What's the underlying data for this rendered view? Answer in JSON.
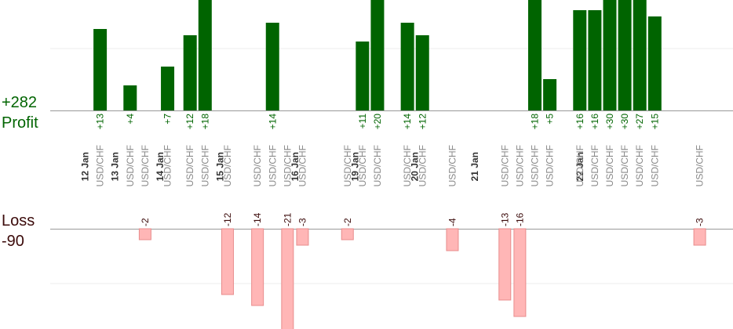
{
  "chart_data": {
    "type": "bar",
    "profit_label": "Profit",
    "profit_total": "+282",
    "loss_label": "Loss",
    "loss_total": "-90",
    "colors": {
      "profit_bar": "#006400",
      "profit_text": "#006400",
      "loss_bar": "#ffb6b6",
      "loss_bar_stroke": "#e88c8c",
      "loss_text": "#3b0a0a",
      "axis": "#999999",
      "grid": "#eeeeee",
      "symbol_text": "#888888",
      "date_text": "#333333"
    },
    "dates": [
      {
        "label": "12 Jan",
        "slot": 0
      },
      {
        "label": "13 Jan",
        "slot": 2
      },
      {
        "label": "14 Jan",
        "slot": 5
      },
      {
        "label": "15 Jan",
        "slot": 9
      },
      {
        "label": "16 Jan",
        "slot": 14
      },
      {
        "label": "19 Jan",
        "slot": 18
      },
      {
        "label": "20 Jan",
        "slot": 22
      },
      {
        "label": "21 Jan",
        "slot": 26
      },
      {
        "label": "22 Jan",
        "slot": 33
      }
    ],
    "trades": [
      {
        "symbol": "USD/CHF",
        "value": 13,
        "label": "+13",
        "slot": 1
      },
      {
        "symbol": "USD/CHF",
        "value": 4,
        "label": "+4",
        "slot": 3
      },
      {
        "symbol": "USD/CHF",
        "value": -2,
        "label": "-2",
        "slot": 4
      },
      {
        "symbol": "USD/CHF",
        "value": 7,
        "label": "+7",
        "slot": 5.5
      },
      {
        "symbol": "USD/CHF",
        "value": 12,
        "label": "+12",
        "slot": 7
      },
      {
        "symbol": "USD/CHF",
        "value": 18,
        "label": "+18",
        "slot": 8
      },
      {
        "symbol": "USD/CHF",
        "value": -12,
        "label": "-12",
        "slot": 9.5
      },
      {
        "symbol": "USD/CHF",
        "value": -14,
        "label": "-14",
        "slot": 11.5
      },
      {
        "symbol": "USD/CHF",
        "value": 14,
        "label": "+14",
        "slot": 12.5
      },
      {
        "symbol": "USD/CHF",
        "value": -21,
        "label": "-21",
        "slot": 13.5
      },
      {
        "symbol": "USD/CHF",
        "value": -3,
        "label": "-3",
        "slot": 14.5
      },
      {
        "symbol": "USD/CHF",
        "value": -2,
        "label": "-2",
        "slot": 17.5
      },
      {
        "symbol": "USD/CHF",
        "value": 11,
        "label": "+11",
        "slot": 18.5
      },
      {
        "symbol": "USD/CHF",
        "value": 20,
        "label": "+20",
        "slot": 19.5
      },
      {
        "symbol": "USD/CHF",
        "value": 14,
        "label": "+14",
        "slot": 21.5
      },
      {
        "symbol": "USD/CHF",
        "value": 12,
        "label": "+12",
        "slot": 22.5
      },
      {
        "symbol": "USD/CHF",
        "value": -4,
        "label": "-4",
        "slot": 24.5
      },
      {
        "symbol": "USD/CHF",
        "value": -13,
        "label": "-13",
        "slot": 28
      },
      {
        "symbol": "USD/CHF",
        "value": -16,
        "label": "-16",
        "slot": 29
      },
      {
        "symbol": "USD/CHF",
        "value": 18,
        "label": "+18",
        "slot": 30
      },
      {
        "symbol": "USD/CHF",
        "value": 5,
        "label": "+5",
        "slot": 31
      },
      {
        "symbol": "USD/CHF",
        "value": 16,
        "label": "+16",
        "slot": 33
      },
      {
        "symbol": "USD/CHF",
        "value": 16,
        "label": "+16",
        "slot": 34
      },
      {
        "symbol": "USD/CHF",
        "value": 30,
        "label": "+30",
        "slot": 35
      },
      {
        "symbol": "USD/CHF",
        "value": 30,
        "label": "+30",
        "slot": 36
      },
      {
        "symbol": "USD/CHF",
        "value": 27,
        "label": "+27",
        "slot": 37
      },
      {
        "symbol": "USD/CHF",
        "value": 15,
        "label": "+15",
        "slot": 38
      },
      {
        "symbol": "USD/CHF",
        "value": -3,
        "label": "-3",
        "slot": 41
      }
    ]
  }
}
